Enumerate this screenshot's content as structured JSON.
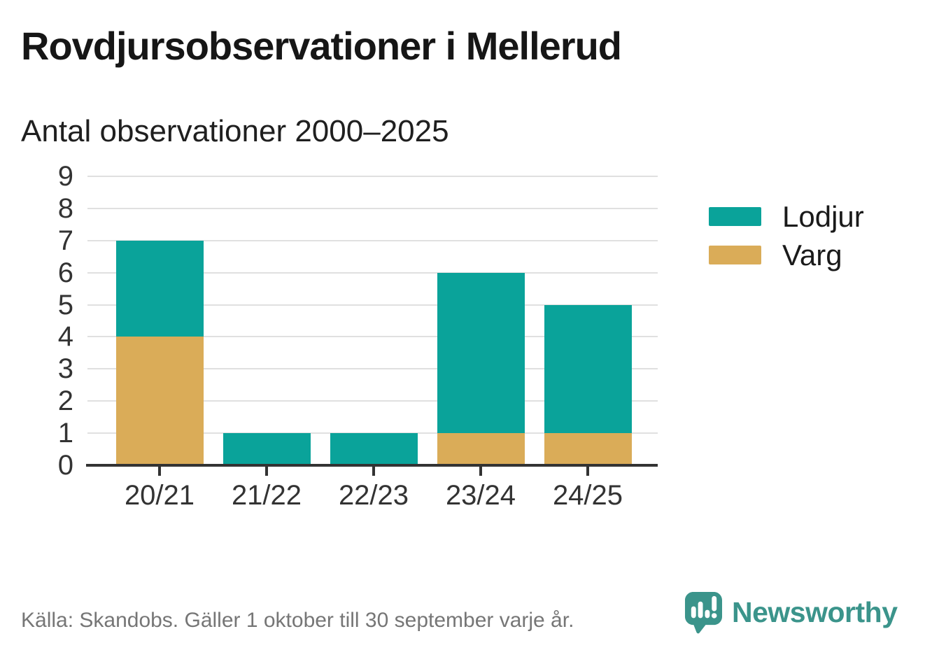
{
  "header": {
    "title": "Rovdjursobservationer i Mellerud",
    "subtitle": "Antal observationer 2000–2025"
  },
  "chart_data": {
    "type": "bar",
    "stacked": true,
    "title": "Rovdjursobservationer i Mellerud",
    "subtitle": "Antal observationer 2000–2025",
    "categories": [
      "20/21",
      "21/22",
      "22/23",
      "23/24",
      "24/25"
    ],
    "series": [
      {
        "name": "Lodjur",
        "color": "#0AA39A",
        "values": [
          3,
          1,
          1,
          5,
          4
        ]
      },
      {
        "name": "Varg",
        "color": "#DAAC58",
        "values": [
          4,
          0,
          0,
          1,
          1
        ]
      }
    ],
    "stack_bottom_to_top": [
      "Varg",
      "Lodjur"
    ],
    "totals": [
      7,
      1,
      1,
      6,
      5
    ],
    "xlabel": "",
    "ylabel": "Antal observationer",
    "ylim": [
      0,
      9
    ],
    "yticks": [
      0,
      1,
      2,
      3,
      4,
      5,
      6,
      7,
      8,
      9
    ],
    "grid": "horizontal",
    "legend_position": "right"
  },
  "legend": {
    "items": [
      {
        "label": "Lodjur",
        "color": "#0AA39A"
      },
      {
        "label": "Varg",
        "color": "#DAAC58"
      }
    ]
  },
  "footer": {
    "source": "Källa: Skandobs. Gäller 1 oktober till 30 september varje år.",
    "brand": "Newsworthy"
  },
  "colors": {
    "lodjur_teal": "#0AA39A",
    "varg_gold": "#DAAC58",
    "axis": "#333333",
    "gridline": "#E0E0E0",
    "text_dark": "#161616",
    "text_muted": "#767676",
    "brand_teal": "#3B948B"
  }
}
